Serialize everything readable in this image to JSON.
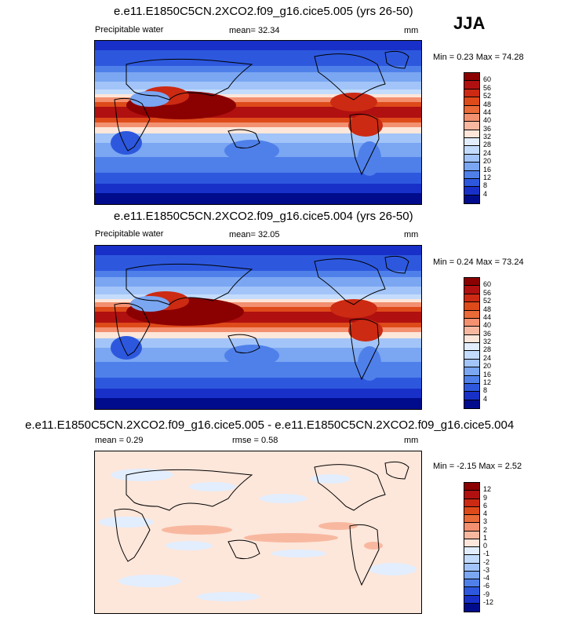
{
  "season": "JJA",
  "panels": [
    {
      "title": "e.e11.E1850C5CN.2XCO2.f09_g16.cice5.005 (yrs 26-50)",
      "left_label": "Precipitable water",
      "mean_label": "mean=  32.34",
      "units": "mm",
      "minmax": "Min =   0.23 Max =  74.28",
      "colorbar_labels": [
        "60",
        "56",
        "52",
        "48",
        "44",
        "40",
        "36",
        "32",
        "28",
        "24",
        "20",
        "16",
        "12",
        "8",
        "4"
      ]
    },
    {
      "title": "e.e11.E1850C5CN.2XCO2.f09_g16.cice5.004 (yrs 26-50)",
      "left_label": "Precipitable water",
      "mean_label": "mean=  32.05",
      "units": "mm",
      "minmax": "Min =   0.24 Max =  73.24",
      "colorbar_labels": [
        "60",
        "56",
        "52",
        "48",
        "44",
        "40",
        "36",
        "32",
        "28",
        "24",
        "20",
        "16",
        "12",
        "8",
        "4"
      ]
    },
    {
      "title": "e.e11.E1850C5CN.2XCO2.f09_g16.cice5.005 - e.e11.E1850C5CN.2XCO2.f09_g16.cice5.004",
      "left_label": "mean =   0.29",
      "mid_label": "rmse =   0.58",
      "units": "mm",
      "minmax": "Min =  -2.15 Max =   2.52",
      "colorbar_labels": [
        "12",
        "9",
        "6",
        "4",
        "3",
        "2",
        "1",
        "0",
        "-1",
        "-2",
        "-3",
        "-4",
        "-6",
        "-9",
        "-12"
      ]
    }
  ],
  "colors": {
    "field_scale": [
      "#8b0000",
      "#b01010",
      "#cc2a12",
      "#de4a1a",
      "#ea6a38",
      "#f29070",
      "#f8b8a0",
      "#fde6da",
      "#e2eefe",
      "#c4dcfc",
      "#a2c4f8",
      "#7aa6f2",
      "#4f80ea",
      "#2d58de",
      "#1830c8",
      "#000c8c"
    ],
    "diff_scale": [
      "#8b0000",
      "#b01010",
      "#cc2a12",
      "#de4a1a",
      "#ea6a38",
      "#f29070",
      "#f8b8a0",
      "#fde6da",
      "#e2eefe",
      "#c4dcfc",
      "#a2c4f8",
      "#7aa6f2",
      "#4f80ea",
      "#2d58de",
      "#1830c8",
      "#000c8c"
    ]
  }
}
